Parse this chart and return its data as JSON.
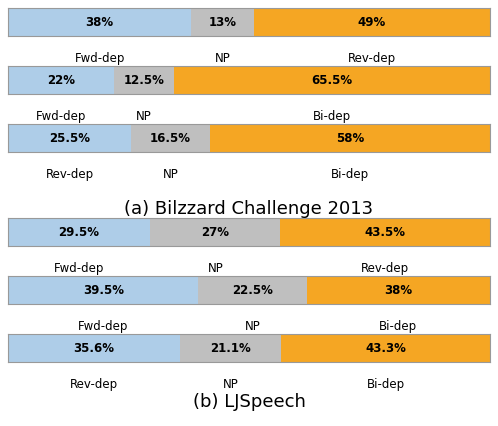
{
  "section_a_title": "(a) Bilzzard Challenge 2013",
  "section_b_title": "(b) LJSpeech",
  "color_blue": "#aecde8",
  "color_gray": "#bfbfbf",
  "color_orange": "#f5a623",
  "bars_a": [
    {
      "values": [
        38,
        13,
        49
      ],
      "labels": [
        "38%",
        "13%",
        "49%"
      ],
      "sublabels": [
        "Fwd-dep",
        "NP",
        "Rev-dep"
      ]
    },
    {
      "values": [
        22,
        12.5,
        65.5
      ],
      "labels": [
        "22%",
        "12.5%",
        "65.5%"
      ],
      "sublabels": [
        "Fwd-dep",
        "NP",
        "Bi-dep"
      ]
    },
    {
      "values": [
        25.5,
        16.5,
        58
      ],
      "labels": [
        "25.5%",
        "16.5%",
        "58%"
      ],
      "sublabels": [
        "Rev-dep",
        "NP",
        "Bi-dep"
      ]
    }
  ],
  "bars_b": [
    {
      "values": [
        29.5,
        27,
        43.5
      ],
      "labels": [
        "29.5%",
        "27%",
        "43.5%"
      ],
      "sublabels": [
        "Fwd-dep",
        "NP",
        "Rev-dep"
      ]
    },
    {
      "values": [
        39.5,
        22.5,
        38
      ],
      "labels": [
        "39.5%",
        "22.5%",
        "38%"
      ],
      "sublabels": [
        "Fwd-dep",
        "NP",
        "Bi-dep"
      ]
    },
    {
      "values": [
        35.6,
        21.1,
        43.3
      ],
      "labels": [
        "35.6%",
        "21.1%",
        "43.3%"
      ],
      "sublabels": [
        "Rev-dep",
        "NP",
        "Bi-dep"
      ]
    }
  ],
  "label_fontsize": 8.5,
  "sublabel_fontsize": 8.5,
  "title_fontsize": 13,
  "bg_color": "#ffffff",
  "border_color": "#999999"
}
